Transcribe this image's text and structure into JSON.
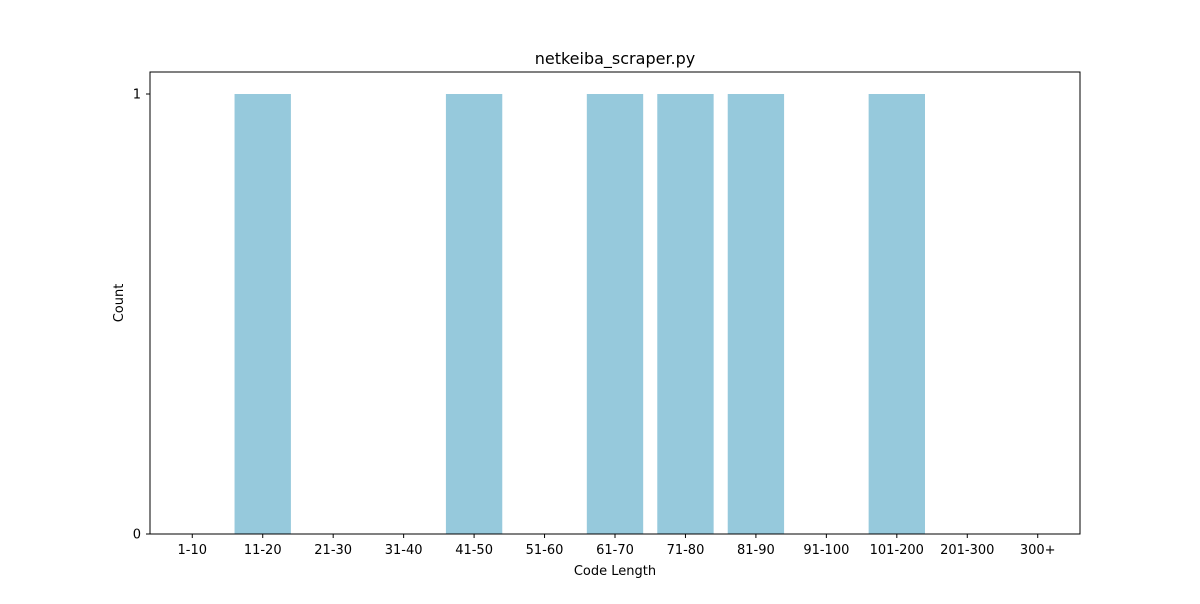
{
  "chart_data": {
    "type": "bar",
    "title": "netkeiba_scraper.py",
    "xlabel": "Code Length",
    "ylabel": "Count",
    "categories": [
      "1-10",
      "11-20",
      "21-30",
      "31-40",
      "41-50",
      "51-60",
      "61-70",
      "71-80",
      "81-90",
      "91-100",
      "101-200",
      "201-300",
      "300+"
    ],
    "values": [
      0,
      1,
      0,
      0,
      1,
      0,
      1,
      1,
      1,
      0,
      1,
      0,
      0
    ],
    "yticks": [
      "0",
      "1"
    ],
    "ylim": [
      0,
      1.05
    ],
    "grid": false,
    "bar_color": "#96c9dc"
  }
}
